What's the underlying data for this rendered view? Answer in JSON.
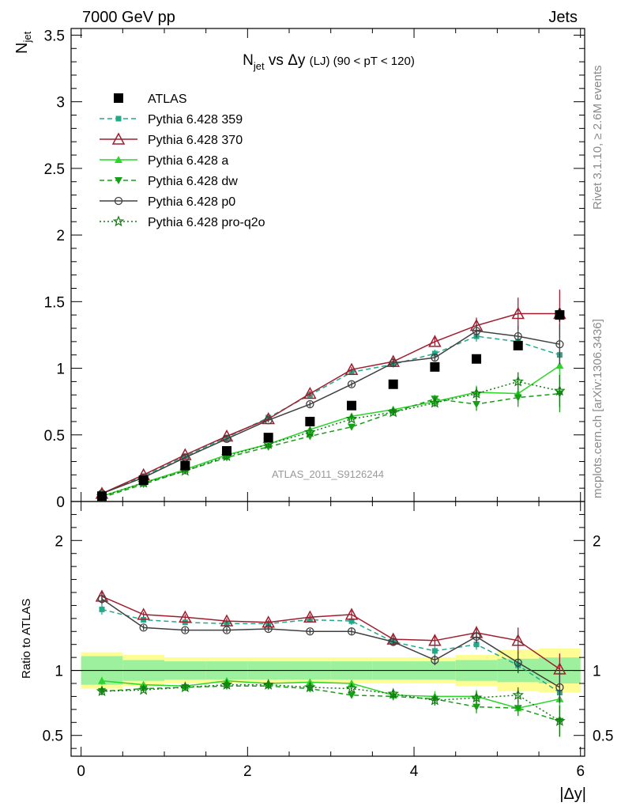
{
  "header": {
    "left": "7000 GeV pp",
    "right": "Jets"
  },
  "side_labels": {
    "rivet": "Rivet 3.1.10, ≥ 2.6M events",
    "mcplots": "mcplots.cern.ch [arXiv:1306.3436]"
  },
  "chart_data": [
    {
      "type": "line",
      "title": {
        "main": "N",
        "sub": "jet",
        "mid": " vs Δy ",
        "lj": "(LJ)",
        "tail": " (90 < pT < 120)"
      },
      "ylabel": {
        "main": "N",
        "sub": "jet"
      },
      "watermark": "ATLAS_2011_S9126244",
      "xlim": [
        -0.12,
        6.05
      ],
      "ylim": [
        0,
        3.55
      ],
      "yticks": [
        0,
        0.5,
        1,
        1.5,
        2,
        2.5,
        3,
        3.5
      ],
      "ytick_labels": [
        "0",
        "0.5",
        "1",
        "1.5",
        "2",
        "2.5",
        "3",
        "3.5"
      ],
      "legend_position": "top-left",
      "x": [
        0.25,
        0.75,
        1.25,
        1.75,
        2.25,
        2.75,
        3.25,
        3.75,
        4.25,
        4.75,
        5.25,
        5.75
      ],
      "series": [
        {
          "name": "ATLAS",
          "color": "#000000",
          "marker": "square",
          "line": "none",
          "values": [
            0.04,
            0.16,
            0.27,
            0.38,
            0.48,
            0.6,
            0.72,
            0.88,
            1.01,
            1.07,
            1.17,
            1.4
          ],
          "errors": [
            0.005,
            0.01,
            0.01,
            0.01,
            0.01,
            0.01,
            0.01,
            0.015,
            0.02,
            0.02,
            0.03,
            0.05
          ]
        },
        {
          "name": "Pythia 6.428 359",
          "color": "#21a98a",
          "marker": "small-square",
          "line": "dashed",
          "values": [
            0.06,
            0.19,
            0.34,
            0.48,
            0.63,
            0.8,
            0.97,
            1.03,
            1.11,
            1.24,
            1.2,
            1.1
          ],
          "errors": [
            0.005,
            0.01,
            0.01,
            0.01,
            0.015,
            0.02,
            0.02,
            0.025,
            0.03,
            0.04,
            0.06,
            0.12
          ]
        },
        {
          "name": "Pythia 6.428 370",
          "color": "#a11d2e",
          "marker": "open-triangle",
          "line": "solid",
          "values": [
            0.06,
            0.2,
            0.35,
            0.49,
            0.62,
            0.81,
            0.99,
            1.05,
            1.2,
            1.32,
            1.41,
            1.41
          ],
          "errors": [
            0.005,
            0.01,
            0.01,
            0.01,
            0.015,
            0.02,
            0.02,
            0.025,
            0.03,
            0.06,
            0.12,
            0.18
          ]
        },
        {
          "name": "Pythia 6.428 a",
          "color": "#29d629",
          "marker": "triangle",
          "line": "solid",
          "values": [
            0.04,
            0.14,
            0.24,
            0.35,
            0.43,
            0.54,
            0.64,
            0.69,
            0.75,
            0.82,
            0.81,
            1.02
          ],
          "errors": [
            0.005,
            0.01,
            0.01,
            0.01,
            0.01,
            0.015,
            0.02,
            0.02,
            0.03,
            0.05,
            0.07,
            0.14
          ]
        },
        {
          "name": "Pythia 6.428 dw",
          "color": "#16a016",
          "marker": "down-triangle",
          "line": "dashed",
          "values": [
            0.03,
            0.13,
            0.23,
            0.33,
            0.41,
            0.49,
            0.56,
            0.67,
            0.77,
            0.73,
            0.78,
            0.81
          ],
          "errors": [
            0.005,
            0.01,
            0.01,
            0.01,
            0.01,
            0.015,
            0.02,
            0.02,
            0.03,
            0.05,
            0.07,
            0.14
          ]
        },
        {
          "name": "Pythia 6.428 p0",
          "color": "#404040",
          "marker": "open-circle",
          "line": "solid",
          "values": [
            0.06,
            0.18,
            0.33,
            0.47,
            0.61,
            0.73,
            0.88,
            1.04,
            1.08,
            1.28,
            1.24,
            1.18
          ],
          "errors": [
            0.005,
            0.01,
            0.01,
            0.01,
            0.015,
            0.02,
            0.02,
            0.025,
            0.03,
            0.05,
            0.08,
            0.15
          ]
        },
        {
          "name": "Pythia 6.428 pro-q2o",
          "color": "#117a11",
          "marker": "star",
          "line": "dotted",
          "values": [
            0.04,
            0.14,
            0.23,
            0.34,
            0.43,
            0.52,
            0.62,
            0.67,
            0.74,
            0.81,
            0.9,
            0.83
          ],
          "errors": [
            0.005,
            0.01,
            0.01,
            0.01,
            0.01,
            0.015,
            0.02,
            0.02,
            0.03,
            0.05,
            0.07,
            0.12
          ]
        }
      ]
    },
    {
      "type": "line",
      "ylabel": "Ratio to ATLAS",
      "xlabel": "|Δy|",
      "xlim": [
        -0.12,
        6.05
      ],
      "ylim": [
        0.34,
        2.3
      ],
      "yticks": [
        0.5,
        1,
        2
      ],
      "ytick_labels": [
        "0.5",
        "1",
        "2"
      ],
      "xticks": [
        0,
        2,
        4,
        6
      ],
      "xtick_labels": [
        "0",
        "2",
        "4",
        "6"
      ],
      "reference_line": 1,
      "band_bins": [
        [
          0,
          0.5
        ],
        [
          0.5,
          1
        ],
        [
          1,
          1.5
        ],
        [
          1.5,
          2
        ],
        [
          2,
          2.5
        ],
        [
          2.5,
          3
        ],
        [
          3,
          3.5
        ],
        [
          3.5,
          4
        ],
        [
          4,
          4.5
        ],
        [
          4.5,
          5
        ],
        [
          5,
          5.5
        ],
        [
          5.5,
          6
        ]
      ],
      "band_inner": [
        0.11,
        0.08,
        0.07,
        0.07,
        0.07,
        0.07,
        0.07,
        0.07,
        0.07,
        0.08,
        0.09,
        0.1
      ],
      "band_outer": [
        0.14,
        0.12,
        0.1,
        0.1,
        0.1,
        0.1,
        0.1,
        0.1,
        0.1,
        0.12,
        0.16,
        0.17
      ],
      "band_colors": {
        "inner": "#9df09d",
        "outer": "#fdfd94"
      },
      "x": [
        0.25,
        0.75,
        1.25,
        1.75,
        2.25,
        2.75,
        3.25,
        3.75,
        4.25,
        4.75,
        5.25,
        5.75
      ],
      "series": [
        {
          "name": "Pythia 6.428 359",
          "values": [
            1.47,
            1.39,
            1.37,
            1.36,
            1.36,
            1.39,
            1.38,
            1.22,
            1.15,
            1.2,
            1.04,
            0.83
          ],
          "errors": [
            0.04,
            0.02,
            0.02,
            0.02,
            0.02,
            0.02,
            0.03,
            0.03,
            0.04,
            0.04,
            0.06,
            0.1
          ]
        },
        {
          "name": "Pythia 6.428 370",
          "values": [
            1.57,
            1.43,
            1.41,
            1.38,
            1.37,
            1.41,
            1.43,
            1.24,
            1.23,
            1.29,
            1.23,
            1.01
          ],
          "errors": [
            0.04,
            0.02,
            0.02,
            0.02,
            0.02,
            0.02,
            0.03,
            0.03,
            0.04,
            0.05,
            0.1,
            0.12
          ]
        },
        {
          "name": "Pythia 6.428 a",
          "values": [
            0.92,
            0.89,
            0.88,
            0.92,
            0.9,
            0.91,
            0.9,
            0.81,
            0.8,
            0.8,
            0.71,
            0.78
          ],
          "errors": [
            0.03,
            0.02,
            0.02,
            0.02,
            0.02,
            0.02,
            0.02,
            0.03,
            0.04,
            0.05,
            0.06,
            0.12
          ]
        },
        {
          "name": "Pythia 6.428 dw",
          "values": [
            0.84,
            0.86,
            0.87,
            0.88,
            0.88,
            0.86,
            0.81,
            0.8,
            0.78,
            0.72,
            0.71,
            0.61
          ],
          "errors": [
            0.03,
            0.02,
            0.02,
            0.02,
            0.02,
            0.02,
            0.02,
            0.03,
            0.04,
            0.05,
            0.06,
            0.12
          ]
        },
        {
          "name": "Pythia 6.428 p0",
          "values": [
            1.55,
            1.33,
            1.31,
            1.31,
            1.32,
            1.3,
            1.3,
            1.22,
            1.08,
            1.26,
            1.06,
            0.87
          ],
          "errors": [
            0.04,
            0.02,
            0.02,
            0.02,
            0.02,
            0.02,
            0.03,
            0.03,
            0.04,
            0.05,
            0.08,
            0.12
          ]
        },
        {
          "name": "Pythia 6.428 pro-q2o",
          "values": [
            0.84,
            0.85,
            0.87,
            0.89,
            0.89,
            0.87,
            0.86,
            0.82,
            0.77,
            0.79,
            0.81,
            0.61
          ],
          "errors": [
            0.03,
            0.02,
            0.02,
            0.02,
            0.02,
            0.02,
            0.02,
            0.03,
            0.04,
            0.05,
            0.06,
            0.12
          ]
        }
      ]
    }
  ]
}
